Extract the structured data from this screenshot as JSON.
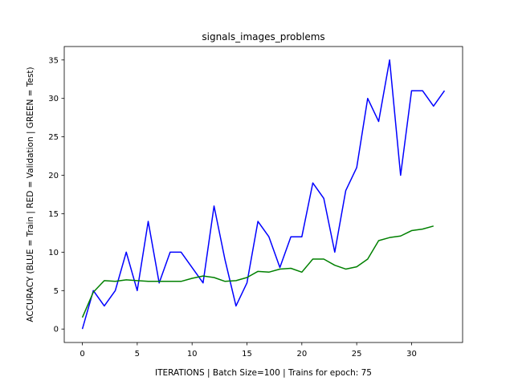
{
  "chart_data": {
    "type": "line",
    "title": "signals_images_problems",
    "xlabel": "ITERATIONS | Batch Size=100 | Trains for epoch: 75",
    "ylabel": "ACCURACY (BLUE = Train | RED = Validation | GREEN = Test)",
    "xlim": [
      -1.65,
      34.65
    ],
    "ylim": [
      -1.75,
      36.75
    ],
    "xticks": [
      0,
      5,
      10,
      15,
      20,
      25,
      30
    ],
    "yticks": [
      0,
      5,
      10,
      15,
      20,
      25,
      30,
      35
    ],
    "grid": false,
    "series": [
      {
        "color": "#0000ff",
        "x": [
          0,
          1,
          2,
          3,
          4,
          5,
          6,
          7,
          8,
          9,
          10,
          11,
          12,
          13,
          14,
          15,
          16,
          17,
          18,
          19,
          20,
          21,
          22,
          23,
          24,
          25,
          26,
          27,
          28,
          29,
          30,
          31,
          32,
          33
        ],
        "y": [
          0,
          5,
          3,
          5,
          10,
          5,
          14,
          6,
          10,
          10,
          8,
          6,
          16,
          9,
          3,
          6,
          14,
          12,
          8,
          12,
          12,
          19,
          17,
          10,
          18,
          21,
          30,
          27,
          35,
          20,
          31,
          31,
          29,
          31
        ]
      },
      {
        "color": "#008000",
        "x": [
          0,
          1,
          2,
          3,
          4,
          5,
          6,
          7,
          8,
          9,
          10,
          11,
          12,
          13,
          14,
          15,
          16,
          17,
          18,
          19,
          20,
          21,
          22,
          23,
          24,
          25,
          26,
          27,
          28,
          29,
          30,
          31,
          32
        ],
        "y": [
          1.5,
          4.8,
          6.3,
          6.2,
          6.4,
          6.3,
          6.2,
          6.2,
          6.2,
          6.2,
          6.6,
          6.9,
          6.7,
          6.2,
          6.3,
          6.7,
          7.5,
          7.4,
          7.8,
          7.9,
          7.4,
          9.1,
          9.1,
          8.3,
          7.8,
          8.1,
          9.1,
          11.5,
          11.9,
          12.1,
          12.8,
          13.0,
          13.4
        ]
      }
    ]
  }
}
